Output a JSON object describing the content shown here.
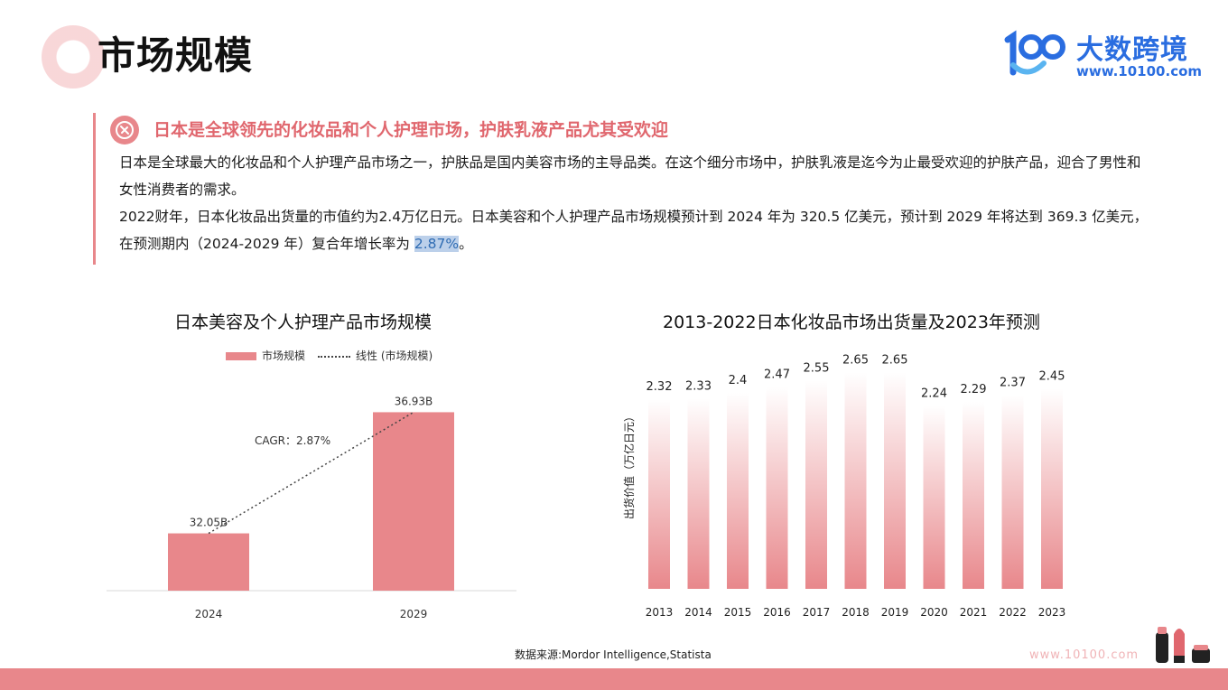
{
  "header": {
    "title": "市场规模",
    "logo_name": "大数跨境",
    "logo_url": "www.10100.com"
  },
  "section": {
    "icon": "lipstick-icon",
    "heading": "日本是全球领先的化妆品和个人护理市场，护肤乳液产品尤其受欢迎",
    "paragraph1": "日本是全球最大的化妆品和个人护理产品市场之一，护肤品是国内美容市场的主导品类。在这个细分市场中，护肤乳液是迄今为止最受欢迎的护肤产品，迎合了男性和女性消费者的需求。",
    "paragraph2_a": "2022财年，日本化妆品出货量的市值约为2.4万亿日元。日本美容和个人护理产品市场规模预计到 2024 年为 320.5 亿美元，预计到 2029 年将达到 369.3 亿美元，在预测期内（2024-2029 年）复合年增长率为 ",
    "paragraph2_hl": "2.87%",
    "paragraph2_b": "。"
  },
  "chart_data": [
    {
      "type": "bar",
      "title": "日本美容及个人护理产品市场规模",
      "legend": [
        "市场规模",
        "线性 (市场规模)"
      ],
      "legend_position": "top",
      "categories": [
        "2024",
        "2029"
      ],
      "series": [
        {
          "name": "市场规模",
          "values": [
            32.05,
            36.93
          ]
        }
      ],
      "data_labels": [
        "32.05B",
        "36.93B"
      ],
      "trendline": {
        "name": "线性 (市场规模)",
        "style": "dotted"
      },
      "annotation": "CAGR：2.87%",
      "ylim": [
        0,
        40
      ],
      "grid": false,
      "color": "#e8878b"
    },
    {
      "type": "bar",
      "title": "2013-2022日本化妆品市场出货量及2023年预测",
      "ylabel": "出货价值（万亿日元）",
      "categories": [
        "2013",
        "2014",
        "2015",
        "2016",
        "2017",
        "2018",
        "2019",
        "2020",
        "2021",
        "2022",
        "2023"
      ],
      "series": [
        {
          "values": [
            2.32,
            2.33,
            2.4,
            2.47,
            2.55,
            2.65,
            2.65,
            2.24,
            2.29,
            2.37,
            2.45
          ]
        }
      ],
      "data_labels": [
        "2.32",
        "2.33",
        "2.4",
        "2.47",
        "2.55",
        "2.65",
        "2.65",
        "2.24",
        "2.29",
        "2.37",
        "2.45"
      ],
      "ylim": [
        0,
        2.72
      ],
      "grid": false,
      "color": "#e8878b"
    }
  ],
  "footer": {
    "source": "数据来源:Mordor Intelligence,Statista",
    "url": "www.10100.com"
  }
}
